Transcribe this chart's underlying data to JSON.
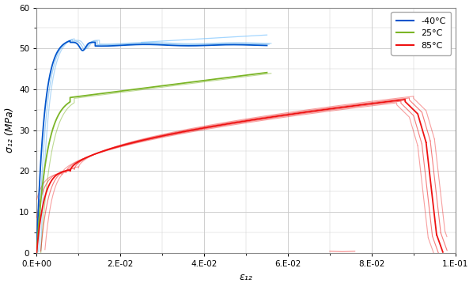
{
  "title": "",
  "xlabel": "ε₁₂",
  "ylabel": "σ₁₂ (MPa)",
  "xlim": [
    0.0,
    0.1
  ],
  "ylim": [
    0,
    60
  ],
  "xticks": [
    0.0,
    0.02,
    0.04,
    0.06,
    0.08,
    0.1
  ],
  "yticks": [
    0,
    10,
    20,
    30,
    40,
    50,
    60
  ],
  "xtick_labels": [
    "0.E+00",
    "2.E-02",
    "4.E-02",
    "6.E-02",
    "8.E-02",
    "1.E-01"
  ],
  "ytick_labels": [
    "0",
    "10",
    "20",
    "30",
    "40",
    "50",
    "60"
  ],
  "color_blue": "#0055CC",
  "color_green": "#7BB526",
  "color_red": "#EE1111",
  "legend_labels": [
    "-40°C",
    "25°C",
    "85°C"
  ],
  "background_color": "#FFFFFF",
  "grid_color": "#C8C8C8"
}
